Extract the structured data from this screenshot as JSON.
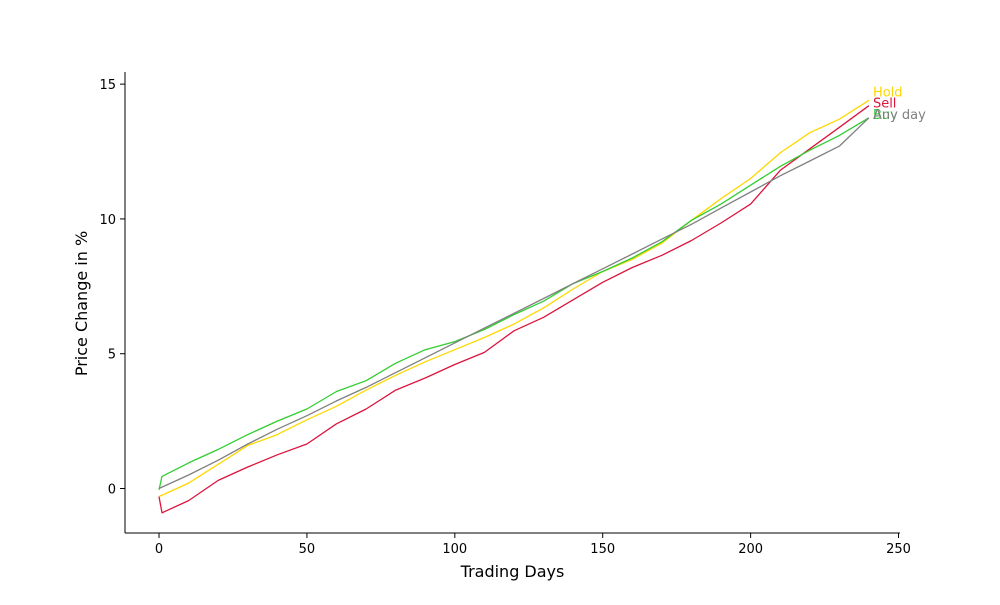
{
  "chart_data": {
    "type": "line",
    "title": "",
    "xlabel": "Trading Days",
    "ylabel": "Price Change in %",
    "xlim": [
      -11.5,
      250.5
    ],
    "ylim": [
      -1.65,
      15.45
    ],
    "xticks": [
      0,
      50,
      100,
      150,
      200,
      250
    ],
    "yticks": [
      0,
      5,
      10,
      15
    ],
    "grid": false,
    "legend": "none",
    "series": [
      {
        "name": "Hold",
        "color": "#FFD700",
        "points": [
          [
            0,
            -0.3
          ],
          [
            10,
            0.2
          ],
          [
            20,
            0.9
          ],
          [
            30,
            1.6
          ],
          [
            40,
            2.0
          ],
          [
            50,
            2.55
          ],
          [
            60,
            3.05
          ],
          [
            70,
            3.65
          ],
          [
            80,
            4.2
          ],
          [
            90,
            4.7
          ],
          [
            100,
            5.15
          ],
          [
            110,
            5.6
          ],
          [
            120,
            6.1
          ],
          [
            130,
            6.7
          ],
          [
            140,
            7.4
          ],
          [
            150,
            8.05
          ],
          [
            160,
            8.5
          ],
          [
            170,
            9.1
          ],
          [
            180,
            9.95
          ],
          [
            190,
            10.75
          ],
          [
            200,
            11.5
          ],
          [
            210,
            12.45
          ],
          [
            220,
            13.2
          ],
          [
            230,
            13.7
          ],
          [
            240,
            14.4
          ]
        ]
      },
      {
        "name": "Sell",
        "color": "#DC143C",
        "points": [
          [
            0,
            -0.3
          ],
          [
            1,
            -0.9
          ],
          [
            10,
            -0.45
          ],
          [
            20,
            0.3
          ],
          [
            30,
            0.8
          ],
          [
            40,
            1.25
          ],
          [
            50,
            1.65
          ],
          [
            60,
            2.4
          ],
          [
            70,
            2.95
          ],
          [
            80,
            3.65
          ],
          [
            90,
            4.1
          ],
          [
            100,
            4.6
          ],
          [
            110,
            5.05
          ],
          [
            120,
            5.85
          ],
          [
            130,
            6.35
          ],
          [
            140,
            7.0
          ],
          [
            150,
            7.65
          ],
          [
            160,
            8.2
          ],
          [
            170,
            8.65
          ],
          [
            180,
            9.2
          ],
          [
            190,
            9.85
          ],
          [
            200,
            10.55
          ],
          [
            210,
            11.8
          ],
          [
            220,
            12.6
          ],
          [
            230,
            13.4
          ],
          [
            240,
            14.2
          ]
        ]
      },
      {
        "name": "Buy",
        "color": "#32CD32",
        "points": [
          [
            0,
            -0.05
          ],
          [
            1,
            0.45
          ],
          [
            10,
            0.95
          ],
          [
            20,
            1.45
          ],
          [
            30,
            2.0
          ],
          [
            40,
            2.5
          ],
          [
            50,
            2.95
          ],
          [
            60,
            3.6
          ],
          [
            70,
            4.0
          ],
          [
            80,
            4.65
          ],
          [
            90,
            5.15
          ],
          [
            100,
            5.45
          ],
          [
            110,
            5.9
          ],
          [
            120,
            6.45
          ],
          [
            130,
            6.95
          ],
          [
            140,
            7.6
          ],
          [
            150,
            8.05
          ],
          [
            160,
            8.55
          ],
          [
            170,
            9.15
          ],
          [
            180,
            9.95
          ],
          [
            190,
            10.55
          ],
          [
            200,
            11.25
          ],
          [
            210,
            11.95
          ],
          [
            220,
            12.55
          ],
          [
            230,
            13.1
          ],
          [
            240,
            13.75
          ]
        ]
      },
      {
        "name": "Any day",
        "color": "#808080",
        "points": [
          [
            0,
            0.0
          ],
          [
            10,
            0.5
          ],
          [
            20,
            1.05
          ],
          [
            30,
            1.65
          ],
          [
            40,
            2.2
          ],
          [
            50,
            2.7
          ],
          [
            60,
            3.25
          ],
          [
            70,
            3.75
          ],
          [
            80,
            4.3
          ],
          [
            90,
            4.85
          ],
          [
            100,
            5.4
          ],
          [
            110,
            5.95
          ],
          [
            120,
            6.5
          ],
          [
            130,
            7.05
          ],
          [
            140,
            7.6
          ],
          [
            150,
            8.15
          ],
          [
            160,
            8.7
          ],
          [
            170,
            9.25
          ],
          [
            180,
            9.8
          ],
          [
            190,
            10.4
          ],
          [
            200,
            11.0
          ],
          [
            210,
            11.6
          ],
          [
            220,
            12.15
          ],
          [
            230,
            12.7
          ],
          [
            240,
            13.75
          ]
        ]
      }
    ]
  }
}
